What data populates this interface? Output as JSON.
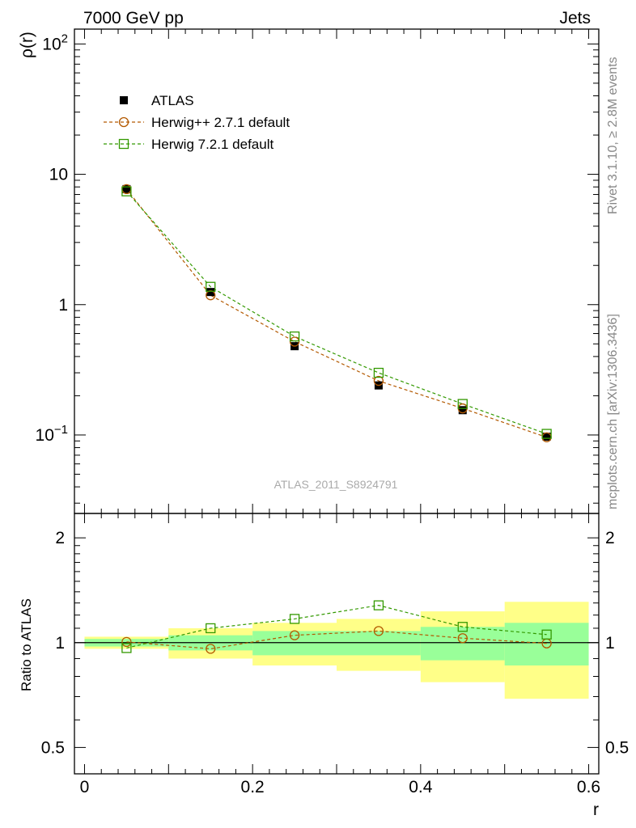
{
  "header": {
    "energy_label": "7000 GeV pp",
    "process_label": "Jets"
  },
  "side_labels": {
    "rivet": "Rivet 3.1.10, ≥ 2.8M events",
    "mcplots": "mcplots.cern.ch [arXiv:1306.3436]"
  },
  "watermark": "ATLAS_2011_S8924791",
  "chart_data": [
    {
      "type": "scatter",
      "ylabel": "ρ(r)",
      "yscale": "log",
      "ylim": [
        0.025,
        130
      ],
      "xlim": [
        -0.012,
        0.612
      ],
      "x": [
        0.05,
        0.15,
        0.25,
        0.35,
        0.45,
        0.55
      ],
      "y_tick_labels": [
        "10⁻¹",
        "1",
        "10",
        "10²"
      ],
      "legend_position": "top-left",
      "series": [
        {
          "name": "ATLAS",
          "marker": "filled-square",
          "color": "#000000",
          "values": [
            7.7,
            1.25,
            0.48,
            0.24,
            0.155,
            0.097
          ]
        },
        {
          "name": "Herwig++ 2.7.1 default",
          "marker": "open-circle",
          "color": "#b35900",
          "values": [
            7.7,
            1.18,
            0.52,
            0.26,
            0.16,
            0.096
          ]
        },
        {
          "name": "Herwig 7.2.1 default",
          "marker": "open-square",
          "color": "#339900",
          "values": [
            7.4,
            1.37,
            0.57,
            0.3,
            0.173,
            0.102
          ]
        }
      ]
    },
    {
      "type": "scatter",
      "xlabel": "r",
      "ylabel": "Ratio to ATLAS",
      "yscale": "log",
      "ylim": [
        0.42,
        2.35
      ],
      "xlim": [
        -0.012,
        0.612
      ],
      "x_tick_labels": [
        "0",
        "0.2",
        "0.4",
        "0.6"
      ],
      "y_tick_labels": [
        "0.5",
        "1",
        "2"
      ],
      "bins": [
        [
          0.0,
          0.1
        ],
        [
          0.1,
          0.2
        ],
        [
          0.2,
          0.3
        ],
        [
          0.3,
          0.4
        ],
        [
          0.4,
          0.5
        ],
        [
          0.5,
          0.6
        ]
      ],
      "green_band": [
        [
          0.975,
          1.025
        ],
        [
          0.95,
          1.05
        ],
        [
          0.92,
          1.08
        ],
        [
          0.92,
          1.08
        ],
        [
          0.89,
          1.11
        ],
        [
          0.86,
          1.14
        ]
      ],
      "yellow_band": [
        [
          0.96,
          1.04
        ],
        [
          0.9,
          1.1
        ],
        [
          0.86,
          1.14
        ],
        [
          0.83,
          1.17
        ],
        [
          0.77,
          1.23
        ],
        [
          0.69,
          1.31
        ]
      ],
      "series": [
        {
          "name": "Herwig++ 2.7.1 default",
          "values": [
            1.005,
            0.96,
            1.05,
            1.08,
            1.03,
            0.995
          ]
        },
        {
          "name": "Herwig 7.2.1 default",
          "values": [
            0.965,
            1.1,
            1.17,
            1.28,
            1.11,
            1.055
          ]
        }
      ]
    }
  ]
}
